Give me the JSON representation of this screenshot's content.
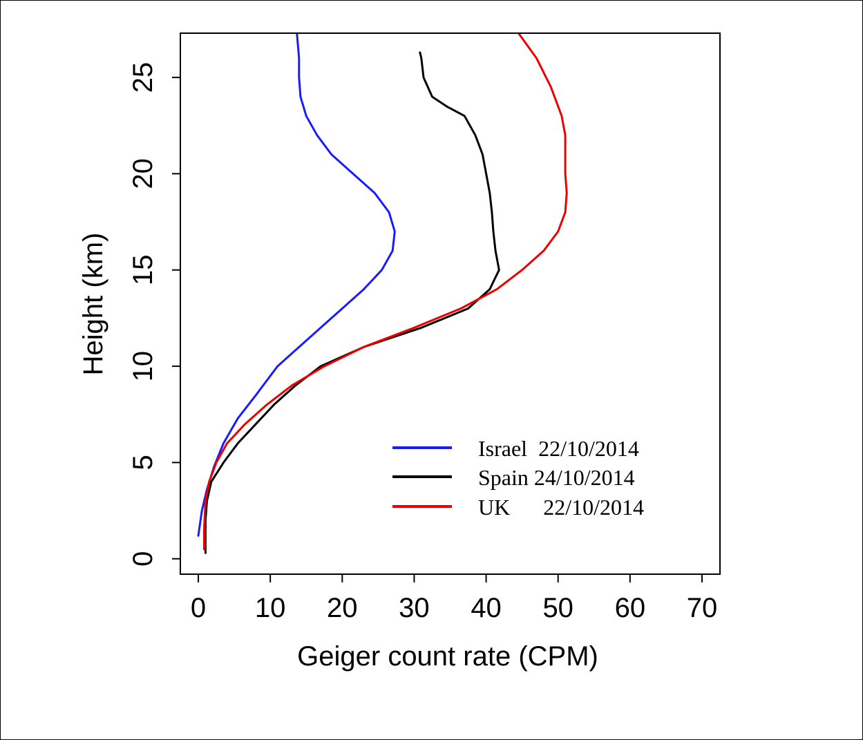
{
  "chart_data": {
    "type": "line",
    "title": "",
    "xlabel": "Geiger count rate (CPM)",
    "ylabel": "Height (km)",
    "xlim": [
      -2.5,
      72.5
    ],
    "ylim": [
      -0.8,
      27.3
    ],
    "xticks": [
      0,
      10,
      20,
      30,
      40,
      50,
      60,
      70
    ],
    "yticks": [
      0,
      5,
      10,
      15,
      20,
      25
    ],
    "grid": false,
    "legend_position": "bottom-right",
    "series": [
      {
        "name": "Israel  22/10/2014",
        "color": "#1a1aff",
        "points": [
          [
            0.0,
            1.2
          ],
          [
            0.5,
            2.5
          ],
          [
            1.2,
            3.6
          ],
          [
            2.2,
            4.8
          ],
          [
            3.5,
            6.0
          ],
          [
            5.5,
            7.3
          ],
          [
            8.0,
            8.5
          ],
          [
            11.0,
            10.0
          ],
          [
            14.0,
            11.0
          ],
          [
            17.0,
            12.0
          ],
          [
            20.0,
            13.0
          ],
          [
            23.0,
            14.0
          ],
          [
            25.5,
            15.0
          ],
          [
            27.0,
            16.0
          ],
          [
            27.3,
            17.0
          ],
          [
            26.5,
            18.0
          ],
          [
            24.5,
            19.0
          ],
          [
            21.5,
            20.0
          ],
          [
            18.5,
            21.0
          ],
          [
            16.5,
            22.0
          ],
          [
            15.0,
            23.0
          ],
          [
            14.2,
            24.0
          ],
          [
            14.0,
            25.0
          ],
          [
            14.0,
            26.0
          ],
          [
            13.7,
            27.3
          ]
        ]
      },
      {
        "name": "Spain 24/10/2014",
        "color": "#000000",
        "points": [
          [
            1.0,
            0.3
          ],
          [
            1.0,
            2.0
          ],
          [
            1.2,
            3.0
          ],
          [
            1.8,
            4.0
          ],
          [
            3.5,
            5.0
          ],
          [
            5.5,
            6.0
          ],
          [
            8.0,
            7.0
          ],
          [
            10.5,
            8.0
          ],
          [
            13.5,
            9.0
          ],
          [
            17.0,
            10.0
          ],
          [
            23.0,
            11.0
          ],
          [
            31.0,
            12.0
          ],
          [
            37.5,
            13.0
          ],
          [
            40.5,
            14.0
          ],
          [
            41.8,
            15.0
          ],
          [
            41.3,
            16.0
          ],
          [
            41.0,
            17.0
          ],
          [
            40.8,
            18.0
          ],
          [
            40.5,
            19.0
          ],
          [
            40.0,
            20.0
          ],
          [
            39.5,
            21.0
          ],
          [
            38.5,
            22.0
          ],
          [
            37.0,
            23.0
          ],
          [
            34.5,
            23.5
          ],
          [
            32.5,
            24.0
          ],
          [
            31.3,
            25.0
          ],
          [
            31.0,
            26.0
          ],
          [
            30.8,
            26.3
          ]
        ]
      },
      {
        "name": "UK      22/10/2014",
        "color": "#ee0000",
        "points": [
          [
            0.8,
            0.5
          ],
          [
            0.8,
            1.5
          ],
          [
            1.0,
            3.0
          ],
          [
            1.5,
            4.0
          ],
          [
            2.5,
            5.0
          ],
          [
            4.0,
            6.0
          ],
          [
            6.5,
            7.0
          ],
          [
            9.5,
            8.0
          ],
          [
            13.0,
            9.0
          ],
          [
            17.5,
            10.0
          ],
          [
            23.0,
            11.0
          ],
          [
            30.0,
            12.0
          ],
          [
            36.5,
            13.0
          ],
          [
            41.5,
            14.0
          ],
          [
            45.0,
            15.0
          ],
          [
            48.0,
            16.0
          ],
          [
            50.0,
            17.0
          ],
          [
            51.0,
            18.0
          ],
          [
            51.2,
            19.0
          ],
          [
            51.0,
            20.0
          ],
          [
            51.0,
            21.0
          ],
          [
            51.0,
            22.0
          ],
          [
            50.5,
            23.0
          ],
          [
            49.0,
            24.5
          ],
          [
            47.0,
            26.0
          ],
          [
            44.5,
            27.3
          ]
        ]
      }
    ]
  }
}
